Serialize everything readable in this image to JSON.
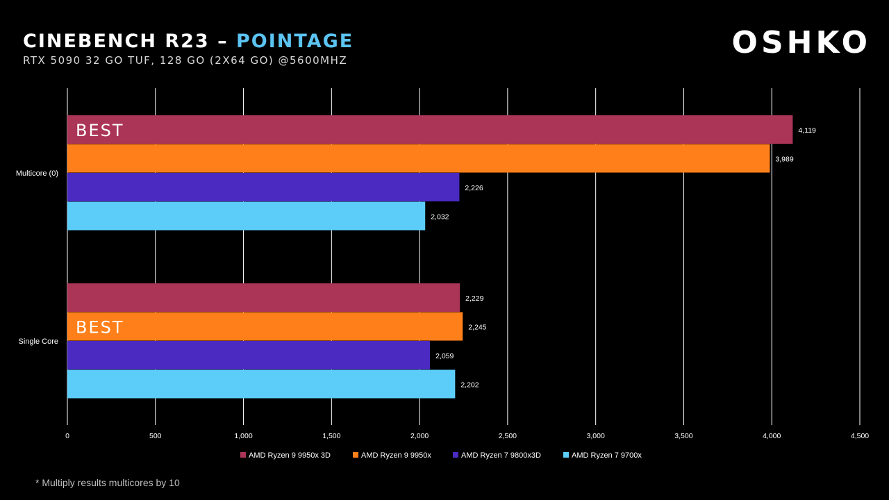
{
  "header": {
    "title_main": "CINEBENCH R23 – ",
    "title_accent": "POINTAGE",
    "subtitle": "RTX 5090 32 GO TUF, 128 GO (2X64 GO) @5600MHZ",
    "logo": "OSHKO"
  },
  "footnote": "* Multiply results multicores by 10",
  "colors": {
    "background": "#000000",
    "grid": "#ffffff",
    "text": "#ffffff"
  },
  "chart_data": {
    "type": "bar",
    "orientation": "horizontal",
    "title": "CINEBENCH R23 – POINTAGE",
    "subtitle": "RTX 5090 32 GO TUF, 128 GO (2X64 GO) @5600MHZ",
    "categories": [
      "Multicore (0)",
      "Single Core"
    ],
    "series": [
      {
        "name": "AMD Ryzen 9 9950x 3D",
        "color": "#ab3556",
        "values": [
          4119,
          2229
        ]
      },
      {
        "name": "AMD Ryzen 9 9950x",
        "color": "#ff7f1a",
        "values": [
          3989,
          2245
        ]
      },
      {
        "name": "AMD Ryzen 7 9800x3D",
        "color": "#4a2ac1",
        "values": [
          2226,
          2059
        ]
      },
      {
        "name": "AMD Ryzen 7 9700x",
        "color": "#5bcdf8",
        "values": [
          2032,
          2202
        ]
      }
    ],
    "data_labels": [
      [
        "4,119",
        "2,229"
      ],
      [
        "3,989",
        "2,245"
      ],
      [
        "2,226",
        "2,059"
      ],
      [
        "2,032",
        "2,202"
      ]
    ],
    "xlim": [
      0,
      4500
    ],
    "x_ticks": [
      0,
      500,
      1000,
      1500,
      2000,
      2500,
      3000,
      3500,
      4000,
      4500
    ],
    "x_tick_labels": [
      "0",
      "500",
      "1,000",
      "1,500",
      "2,000",
      "2,500",
      "3,000",
      "3,500",
      "4,000",
      "4,500"
    ],
    "grid": true,
    "legend_position": "bottom",
    "annotations": [
      {
        "text": "BEST",
        "category": "Multicore (0)",
        "series": "AMD Ryzen 9 9950x 3D"
      },
      {
        "text": "BEST",
        "category": "Single Core",
        "series": "AMD Ryzen 9 9950x"
      }
    ]
  }
}
